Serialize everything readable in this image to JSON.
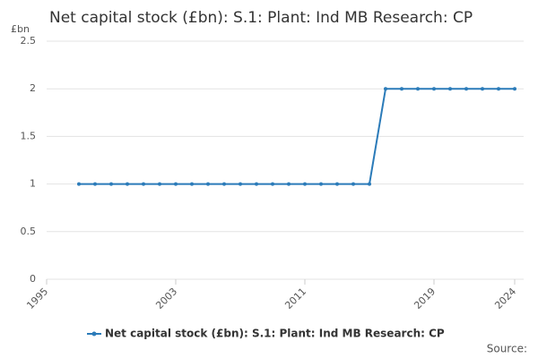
{
  "chart_data": {
    "type": "line",
    "title": "Net capital stock (£bn): S.1: Plant: Ind MB Research: CP",
    "y_label": "£bn",
    "source": "Source:",
    "x": [
      1997,
      1998,
      1999,
      2000,
      2001,
      2002,
      2003,
      2004,
      2005,
      2006,
      2007,
      2008,
      2009,
      2010,
      2011,
      2012,
      2013,
      2014,
      2015,
      2016,
      2017,
      2018,
      2019,
      2020,
      2021,
      2022,
      2023,
      2024
    ],
    "series": [
      {
        "name": "Net capital stock (£bn): S.1: Plant: Ind MB Research: CP",
        "color": "#2b7bb9",
        "values": [
          1,
          1,
          1,
          1,
          1,
          1,
          1,
          1,
          1,
          1,
          1,
          1,
          1,
          1,
          1,
          1,
          1,
          1,
          1,
          2,
          2,
          2,
          2,
          2,
          2,
          2,
          2,
          2
        ]
      }
    ],
    "xlim": [
      1995,
      2024
    ],
    "xticks": [
      1995,
      2003,
      2011,
      2019,
      2024
    ],
    "ylim": [
      0,
      2.5
    ],
    "yticks": [
      0,
      0.5,
      1,
      1.5,
      2,
      2.5
    ],
    "grid": true,
    "legend": "bottom"
  }
}
